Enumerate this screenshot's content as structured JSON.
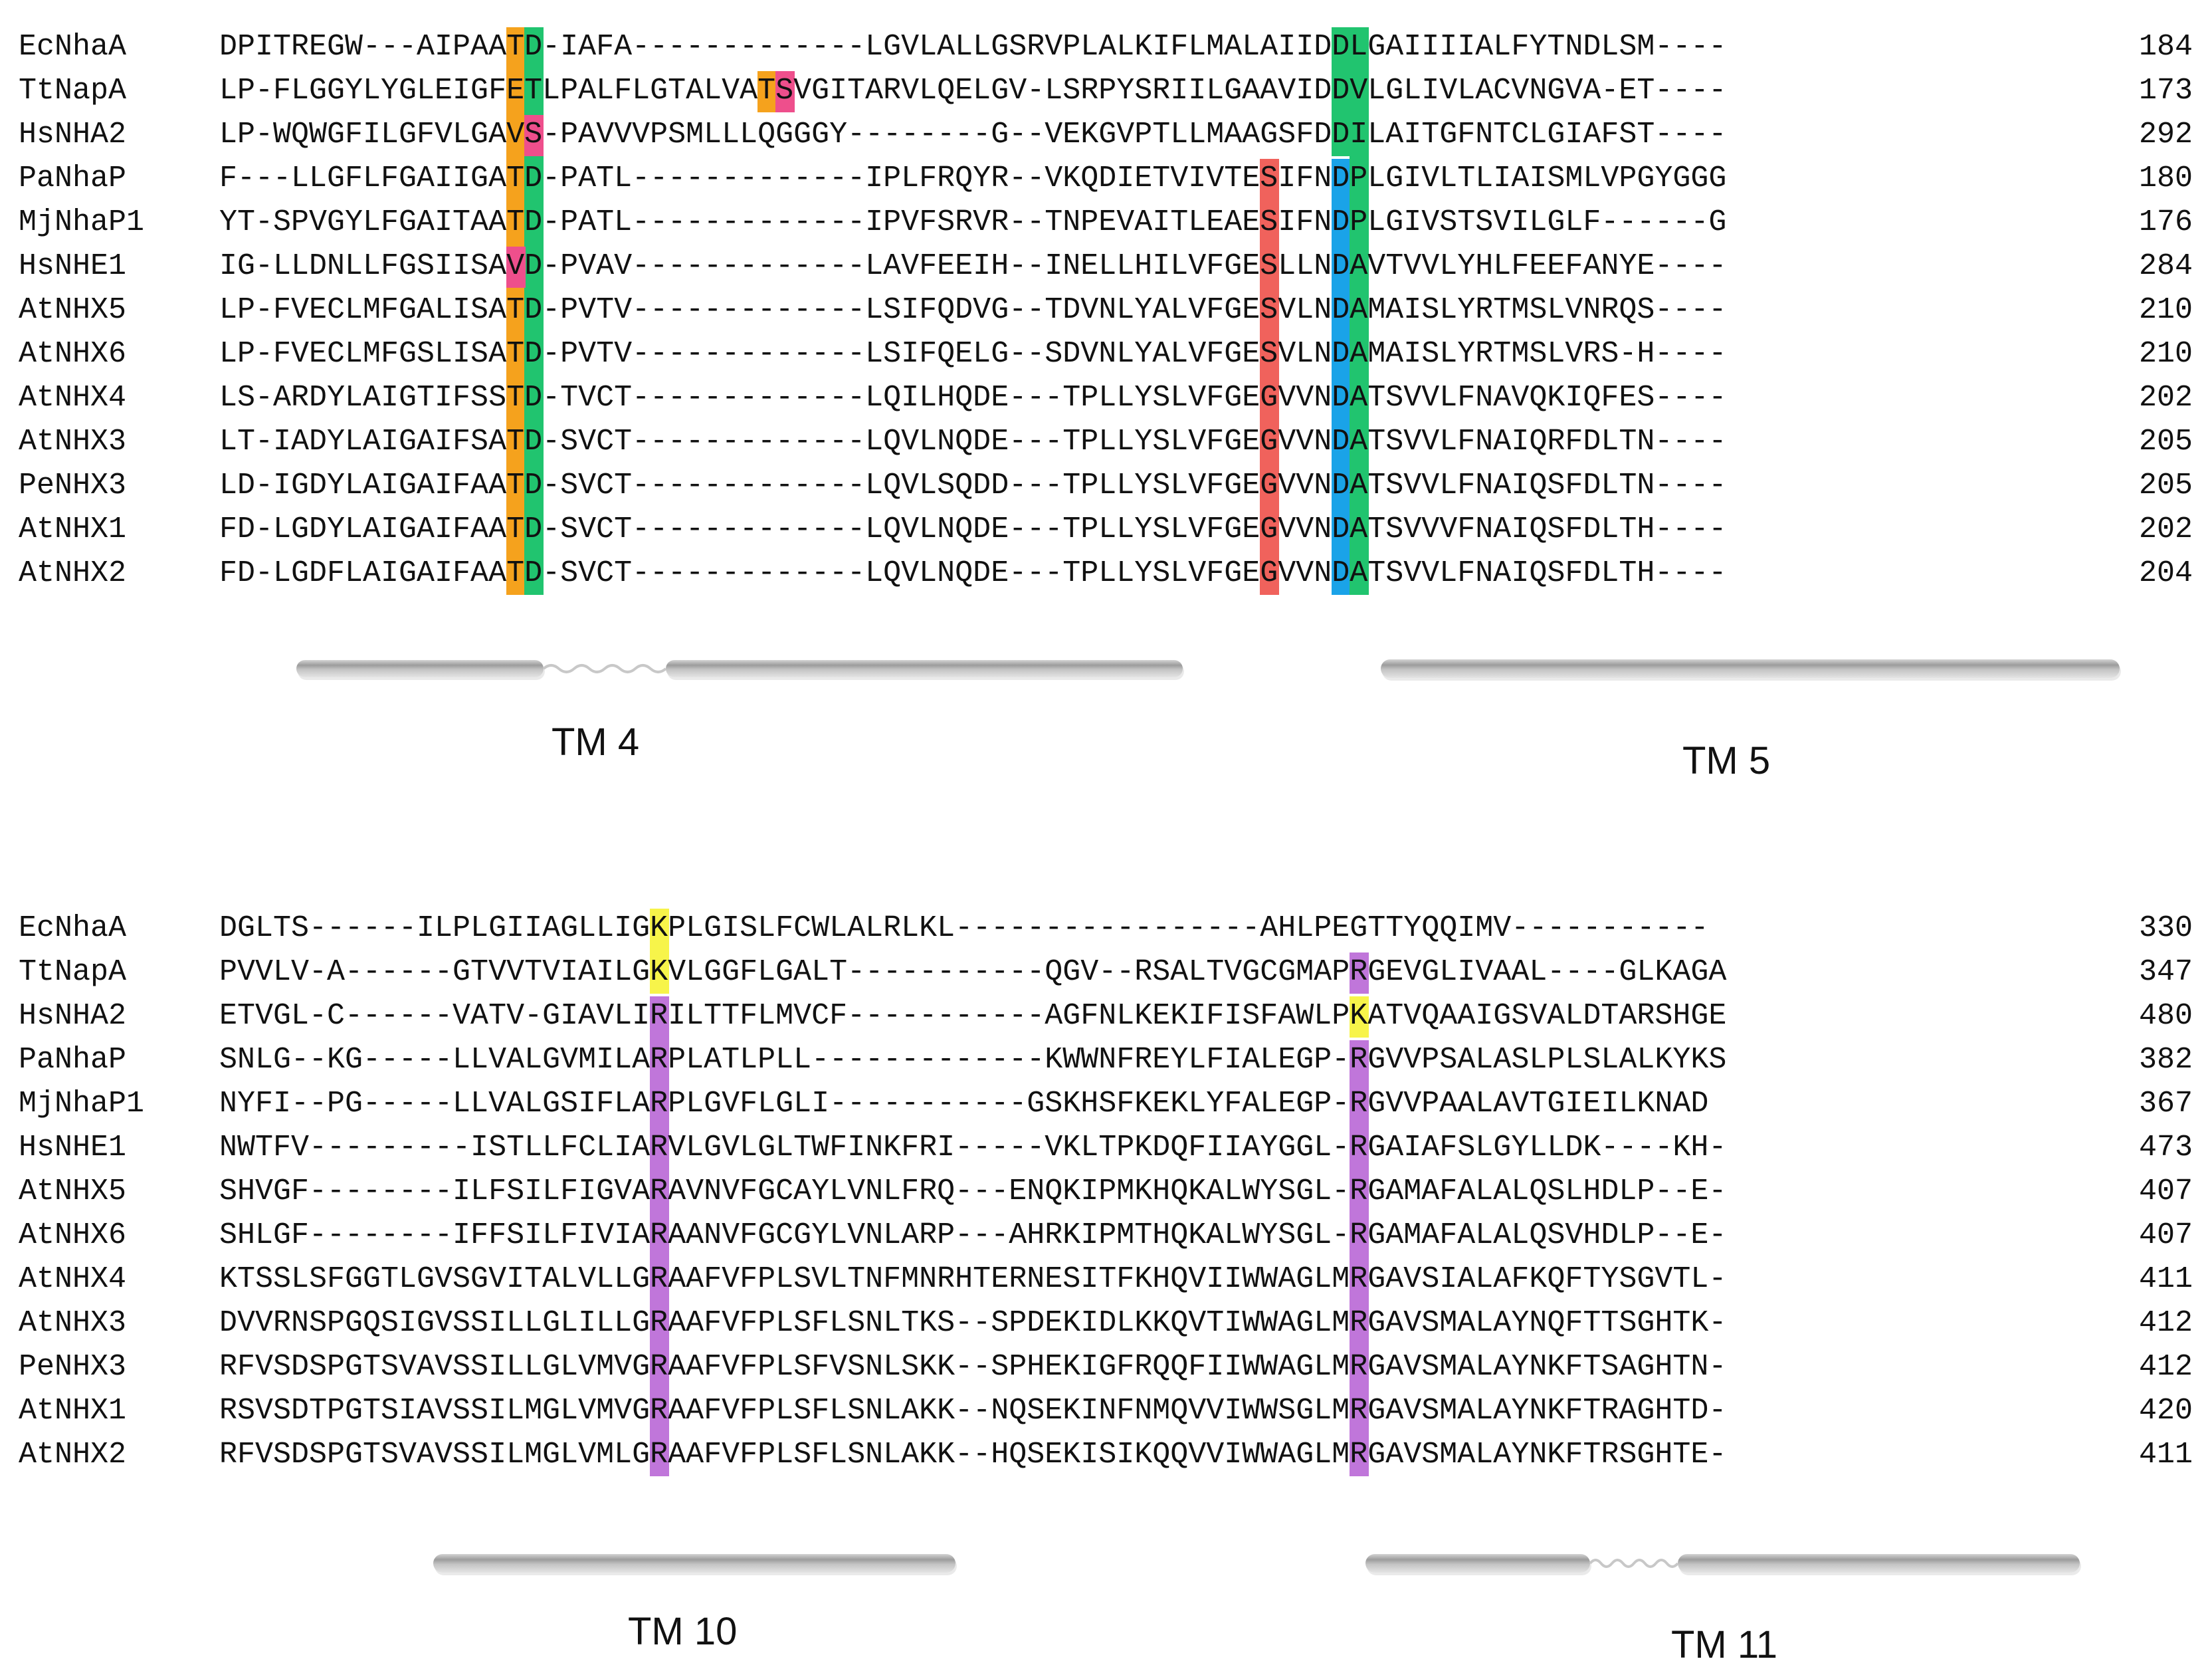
{
  "colors": {
    "orange": "#f5a21d",
    "green": "#21c46f",
    "pink": "#ee4f8c",
    "red": "#f0625c",
    "blue": "#1aa3e8",
    "yellow": "#f7f44a",
    "purple": "#c076da",
    "helix": "#b4b4b4"
  },
  "blocks": [
    {
      "id": "block-tm4-5",
      "rows": [
        {
          "name": "EcNhaA",
          "seq": "DPITREGW---AIPAATD-IAFA-------------LGVLALLGSRVPLALKIFLMALAIIDDLGAIIIIALFYTNDLSM----",
          "end": "184"
        },
        {
          "name": "TtNapA",
          "seq": "LP-FLGGYLYGLEIGFETLPALFLGTALVATSVGITARVLQELGV-LSRPYSRIILGAAVIDDVLGLIVLACVNGVA-ET----",
          "end": "173"
        },
        {
          "name": "HsNHA2",
          "seq": "LP-WQWGFILGFVLGAVS-PAVVVPSMLLLQGGGY--------G--VEKGVPTLLMAAGSFDDILAITGFNTCLGIAFST----",
          "end": "292"
        },
        {
          "name": "PaNhaP",
          "seq": "F---LLGFLFGAIIGATD-PATL-------------IPLFRQYR--VKQDIETVIVTESIFNDPLGIVLTLIAISMLVPGYGGG",
          "end": "180"
        },
        {
          "name": "MjNhaP1",
          "seq": "YT-SPVGYLFGAITAATD-PATL-------------IPVFSRVR--TNPEVAITLEAESIFNDPLGIVSTSVILGLF------G",
          "end": "176"
        },
        {
          "name": "HsNHE1",
          "seq": "IG-LLDNLLFGSIISAVD-PVAV-------------LAVFEEIH--INELLHILVFGESLLNDAVTVVLYHLFEEFANYE----",
          "end": "284"
        },
        {
          "name": "AtNHX5",
          "seq": "LP-FVECLMFGALISATD-PVTV-------------LSIFQDVG--TDVNLYALVFGESVLNDAMAISLYRTMSLVNRQS----",
          "end": "210"
        },
        {
          "name": "AtNHX6",
          "seq": "LP-FVECLMFGSLISATD-PVTV-------------LSIFQELG--SDVNLYALVFGESVLNDAMAISLYRTMSLVRS-H----",
          "end": "210"
        },
        {
          "name": "AtNHX4",
          "seq": "LS-ARDYLAIGTIFSSTD-TVCT-------------LQILHQDE---TPLLYSLVFGEGVVNDATSVVLFNAVQKIQFES----",
          "end": "202"
        },
        {
          "name": "AtNHX3",
          "seq": "LT-IADYLAIGAIFSATD-SVCT-------------LQVLNQDE---TPLLYSLVFGEGVVNDATSVVLFNAIQRFDLTN----",
          "end": "205"
        },
        {
          "name": "PeNHX3",
          "seq": "LD-IGDYLAIGAIFAATD-SVCT-------------LQVLSQDD---TPLLYSLVFGEGVVNDATSVVLFNAIQSFDLTN----",
          "end": "205"
        },
        {
          "name": "AtNHX1",
          "seq": "FD-LGDYLAIGAIFAATD-SVCT-------------LQVLNQDE---TPLLYSLVFGEGVVNDATSVVVFNAIQSFDLTH----",
          "end": "202"
        },
        {
          "name": "AtNHX2",
          "seq": "FD-LGDFLAIGAIFAATD-SVCT-------------LQVLNQDE---TPLLYSLVFGEGVVNDATSVVLFNAIQSFDLTH----",
          "end": "204"
        }
      ],
      "tm_labels": [
        "TM 4",
        "TM 5"
      ]
    },
    {
      "id": "block-tm10-11",
      "rows": [
        {
          "name": "EcNhaA",
          "seq": "DGLTS------ILPLGIIAGLLIGKPLGISLFCWLALRLKL-----------------AHLPEGTTYQQIMV-----------",
          "end": "330"
        },
        {
          "name": "TtNapA",
          "seq": "PVVLV-A------GTVVTVIAILGKVLGGFLGALT-----------QGV--RSALTVGCGMAPRGEVGLIVAAL----GLKAGA",
          "end": "347"
        },
        {
          "name": "HsNHA2",
          "seq": "ETVGL-C------VATV-GIAVLIRILTTFLMVCF-----------AGFNLKEKIFISFAWLPKATVQAAIGSVALDTARSHGE",
          "end": "480"
        },
        {
          "name": "PaNhaP",
          "seq": "SNLG--KG-----LLVALGVMILARPLATLPLL-------------KWWNFREYLFIALEGP-RGVVPSALASLPLSLALKYKS",
          "end": "382"
        },
        {
          "name": "MjNhaP1",
          "seq": "NYFI--PG-----LLVALGSIFLARPLGVFLGLI-----------GSKHSFKEKLYFALEGP-RGVVPAALAVTGIEILKNAD",
          "end": "367"
        },
        {
          "name": "HsNHE1",
          "seq": "NWTFV---------ISTLLFCLIARVLGVLGLTWFINKFRI-----VKLTPKDQFIIAYGGL-RGAIAFSLGYLLDK----KH-",
          "end": "473"
        },
        {
          "name": "AtNHX5",
          "seq": "SHVGF--------ILFSILFIGVARAVNVFGCAYLVNLFRQ---ENQKIPMKHQKALWYSGL-RGAMAFALALQSLHDLP--E-",
          "end": "407"
        },
        {
          "name": "AtNHX6",
          "seq": "SHLGF--------IFFSILFIVIARAANVFGCGYLVNLARP---AHRKIPMTHQKALWYSGL-RGAMAFALALQSVHDLP--E-",
          "end": "407"
        },
        {
          "name": "AtNHX4",
          "seq": "KTSSLSFGGTLGVSGVITALVLLGRAAFVFPLSVLTNFMNRHTERNESITFKHQVIIWWAGLMRGAVSIALAFKQFTYSGVTL-",
          "end": "411"
        },
        {
          "name": "AtNHX3",
          "seq": "DVVRNSPGQSIGVSSILLGLILLGRAAFVFPLSFLSNLTKS--SPDEKIDLKKQVTIWWAGLMRGAVSMALAYNQFTTSGHTK-",
          "end": "412"
        },
        {
          "name": "PeNHX3",
          "seq": "RFVSDSPGTSVAVSSILLGLVMVGRAAFVFPLSFVSNLSKK--SPHEKIGFRQQFIIWWAGLMRGAVSMALAYNKFTSAGHTN-",
          "end": "412"
        },
        {
          "name": "AtNHX1",
          "seq": "RSVSDTPGTSIAVSSILMGLVMVGRAAFVFPLSFLSNLAKK--NQSEKINFNMQVVIWWSGLMRGAVSMALAYNKFTRAGHTD-",
          "end": "420"
        },
        {
          "name": "AtNHX2",
          "seq": "RFVSDSPGTSVAVSSILMGLVMLGRAAFVFPLSFLSNLAKK--HQSEKISIKQQVVIWWAGLMRGAVSMALAYNKFTRSGHTE-",
          "end": "411"
        }
      ],
      "tm_labels": [
        "TM 10",
        "TM 11"
      ]
    }
  ]
}
